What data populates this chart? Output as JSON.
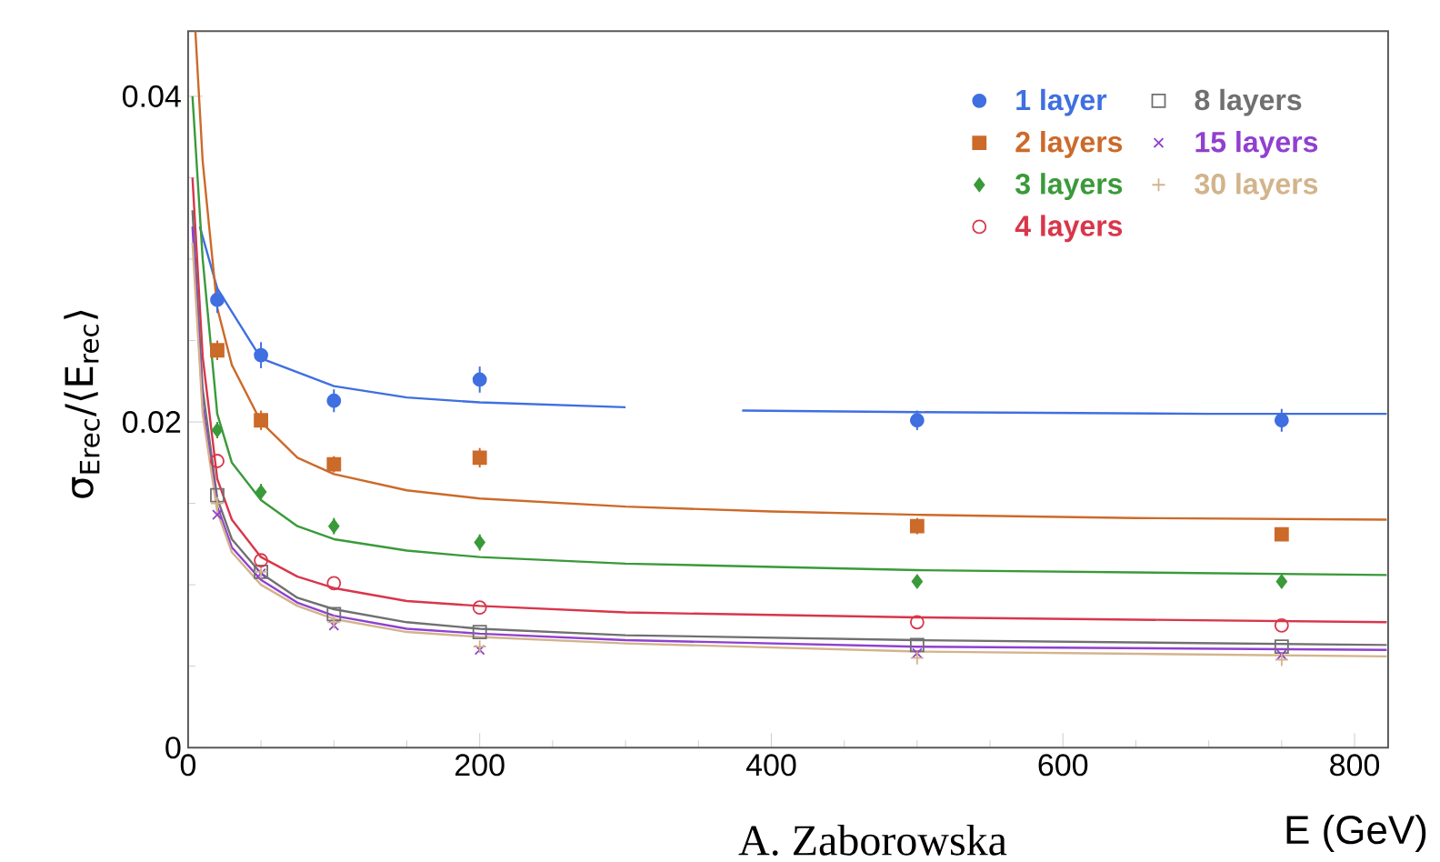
{
  "chart_data": {
    "type": "scatter",
    "xlabel": "E (GeV)",
    "ylabel": "σ$_{Erec}$/⟨E$_{rec}$⟩",
    "annotations": [
      "A. Zaborowska"
    ],
    "x": [
      20,
      50,
      100,
      200,
      500,
      750
    ],
    "xlim": [
      0,
      823
    ],
    "xticks": [
      0,
      200,
      400,
      600,
      800
    ],
    "ylim": [
      0,
      0.044
    ],
    "yticks": [
      0,
      0.02,
      0.04
    ],
    "legend": "top right",
    "grid": false,
    "series": [
      {
        "name": "1 layer",
        "color": "#3f6fe0",
        "marker": "circle",
        "values": [
          0.0275,
          0.0241,
          0.0213,
          0.0226,
          0.0201,
          0.0201
        ],
        "errors": [
          0.0008,
          0.0008,
          0.0007,
          0.0008,
          0.0006,
          0.0007
        ]
      },
      {
        "name": "2 layers",
        "color": "#cc6a2a",
        "marker": "square",
        "values": [
          0.0244,
          0.0201,
          0.0174,
          0.0178,
          0.0136,
          0.0131
        ],
        "errors": [
          0.0006,
          0.0006,
          0.0005,
          0.0006,
          0.0005,
          0.0003
        ]
      },
      {
        "name": "3 layers",
        "color": "#3a9a3a",
        "marker": "diamond",
        "values": [
          0.0195,
          0.0157,
          0.0136,
          0.0126,
          0.0102,
          0.0102
        ],
        "errors": [
          0.0005,
          0.0005,
          0.0005,
          0.0005,
          0.0003,
          0.0003
        ]
      },
      {
        "name": "4 layers",
        "color": "#d8364a",
        "marker": "circle-open",
        "values": [
          0.0176,
          0.0115,
          0.0101,
          0.0086,
          0.0077,
          0.0075
        ]
      },
      {
        "name": "8 layers",
        "color": "#707070",
        "marker": "square-open",
        "values": [
          0.0155,
          0.0108,
          0.0082,
          0.0071,
          0.0063,
          0.0062
        ]
      },
      {
        "name": "15 layers",
        "color": "#9040d0",
        "marker": "cross",
        "values": [
          0.0143,
          0.0107,
          0.0075,
          0.006,
          0.0058,
          0.0057
        ]
      },
      {
        "name": "30 layers",
        "color": "#d2b48c",
        "marker": "plus",
        "values": [
          0.015,
          0.0108,
          0.0077,
          0.0062,
          0.0055,
          0.0054
        ]
      },
      {
        "type": "line",
        "color": "#3f6fe0",
        "marker": "none",
        "x": [
          8,
          20,
          50,
          100,
          150,
          200,
          300,
          340,
          380,
          500,
          700,
          822
        ],
        "values": [
          0.032,
          0.0282,
          0.0239,
          0.0222,
          0.0215,
          0.0212,
          0.0209,
          null,
          0.0207,
          0.0206,
          0.0205,
          0.0205
        ]
      },
      {
        "type": "line",
        "color": "#cc6a2a",
        "marker": "none",
        "x": [
          5,
          10,
          20,
          30,
          50,
          75,
          100,
          150,
          200,
          300,
          400,
          500,
          650,
          822
        ],
        "values": [
          0.044,
          0.036,
          0.027,
          0.0235,
          0.02,
          0.0178,
          0.0168,
          0.0158,
          0.0153,
          0.0148,
          0.0145,
          0.0143,
          0.0141,
          0.014
        ]
      },
      {
        "type": "line",
        "color": "#3a9a3a",
        "marker": "none",
        "x": [
          3,
          10,
          20,
          30,
          50,
          75,
          100,
          150,
          200,
          300,
          500,
          822
        ],
        "values": [
          0.04,
          0.03,
          0.0205,
          0.0175,
          0.0152,
          0.0136,
          0.0128,
          0.0121,
          0.0117,
          0.0113,
          0.0109,
          0.0106
        ]
      },
      {
        "type": "line",
        "color": "#d8364a",
        "marker": "none",
        "x": [
          3,
          10,
          20,
          30,
          50,
          75,
          100,
          150,
          200,
          300,
          500,
          822
        ],
        "values": [
          0.035,
          0.024,
          0.0165,
          0.014,
          0.0117,
          0.0105,
          0.0098,
          0.009,
          0.0087,
          0.0083,
          0.008,
          0.0077
        ]
      },
      {
        "type": "line",
        "color": "#707070",
        "marker": "none",
        "x": [
          3,
          10,
          20,
          30,
          50,
          75,
          100,
          150,
          200,
          300,
          500,
          822
        ],
        "values": [
          0.033,
          0.022,
          0.0153,
          0.0128,
          0.0107,
          0.0092,
          0.0085,
          0.0077,
          0.0073,
          0.0069,
          0.0066,
          0.0063
        ]
      },
      {
        "type": "line",
        "color": "#9040d0",
        "marker": "none",
        "x": [
          3,
          10,
          20,
          30,
          50,
          75,
          100,
          150,
          200,
          300,
          500,
          822
        ],
        "values": [
          0.032,
          0.021,
          0.0148,
          0.0123,
          0.0103,
          0.0089,
          0.0081,
          0.0073,
          0.007,
          0.0066,
          0.0062,
          0.006
        ]
      },
      {
        "type": "line",
        "color": "#d2b48c",
        "marker": "none",
        "x": [
          3,
          10,
          20,
          30,
          50,
          75,
          100,
          150,
          200,
          300,
          500,
          822
        ],
        "values": [
          0.031,
          0.0205,
          0.0145,
          0.012,
          0.01,
          0.0087,
          0.0079,
          0.0071,
          0.0068,
          0.0064,
          0.0059,
          0.0056
        ]
      }
    ]
  }
}
